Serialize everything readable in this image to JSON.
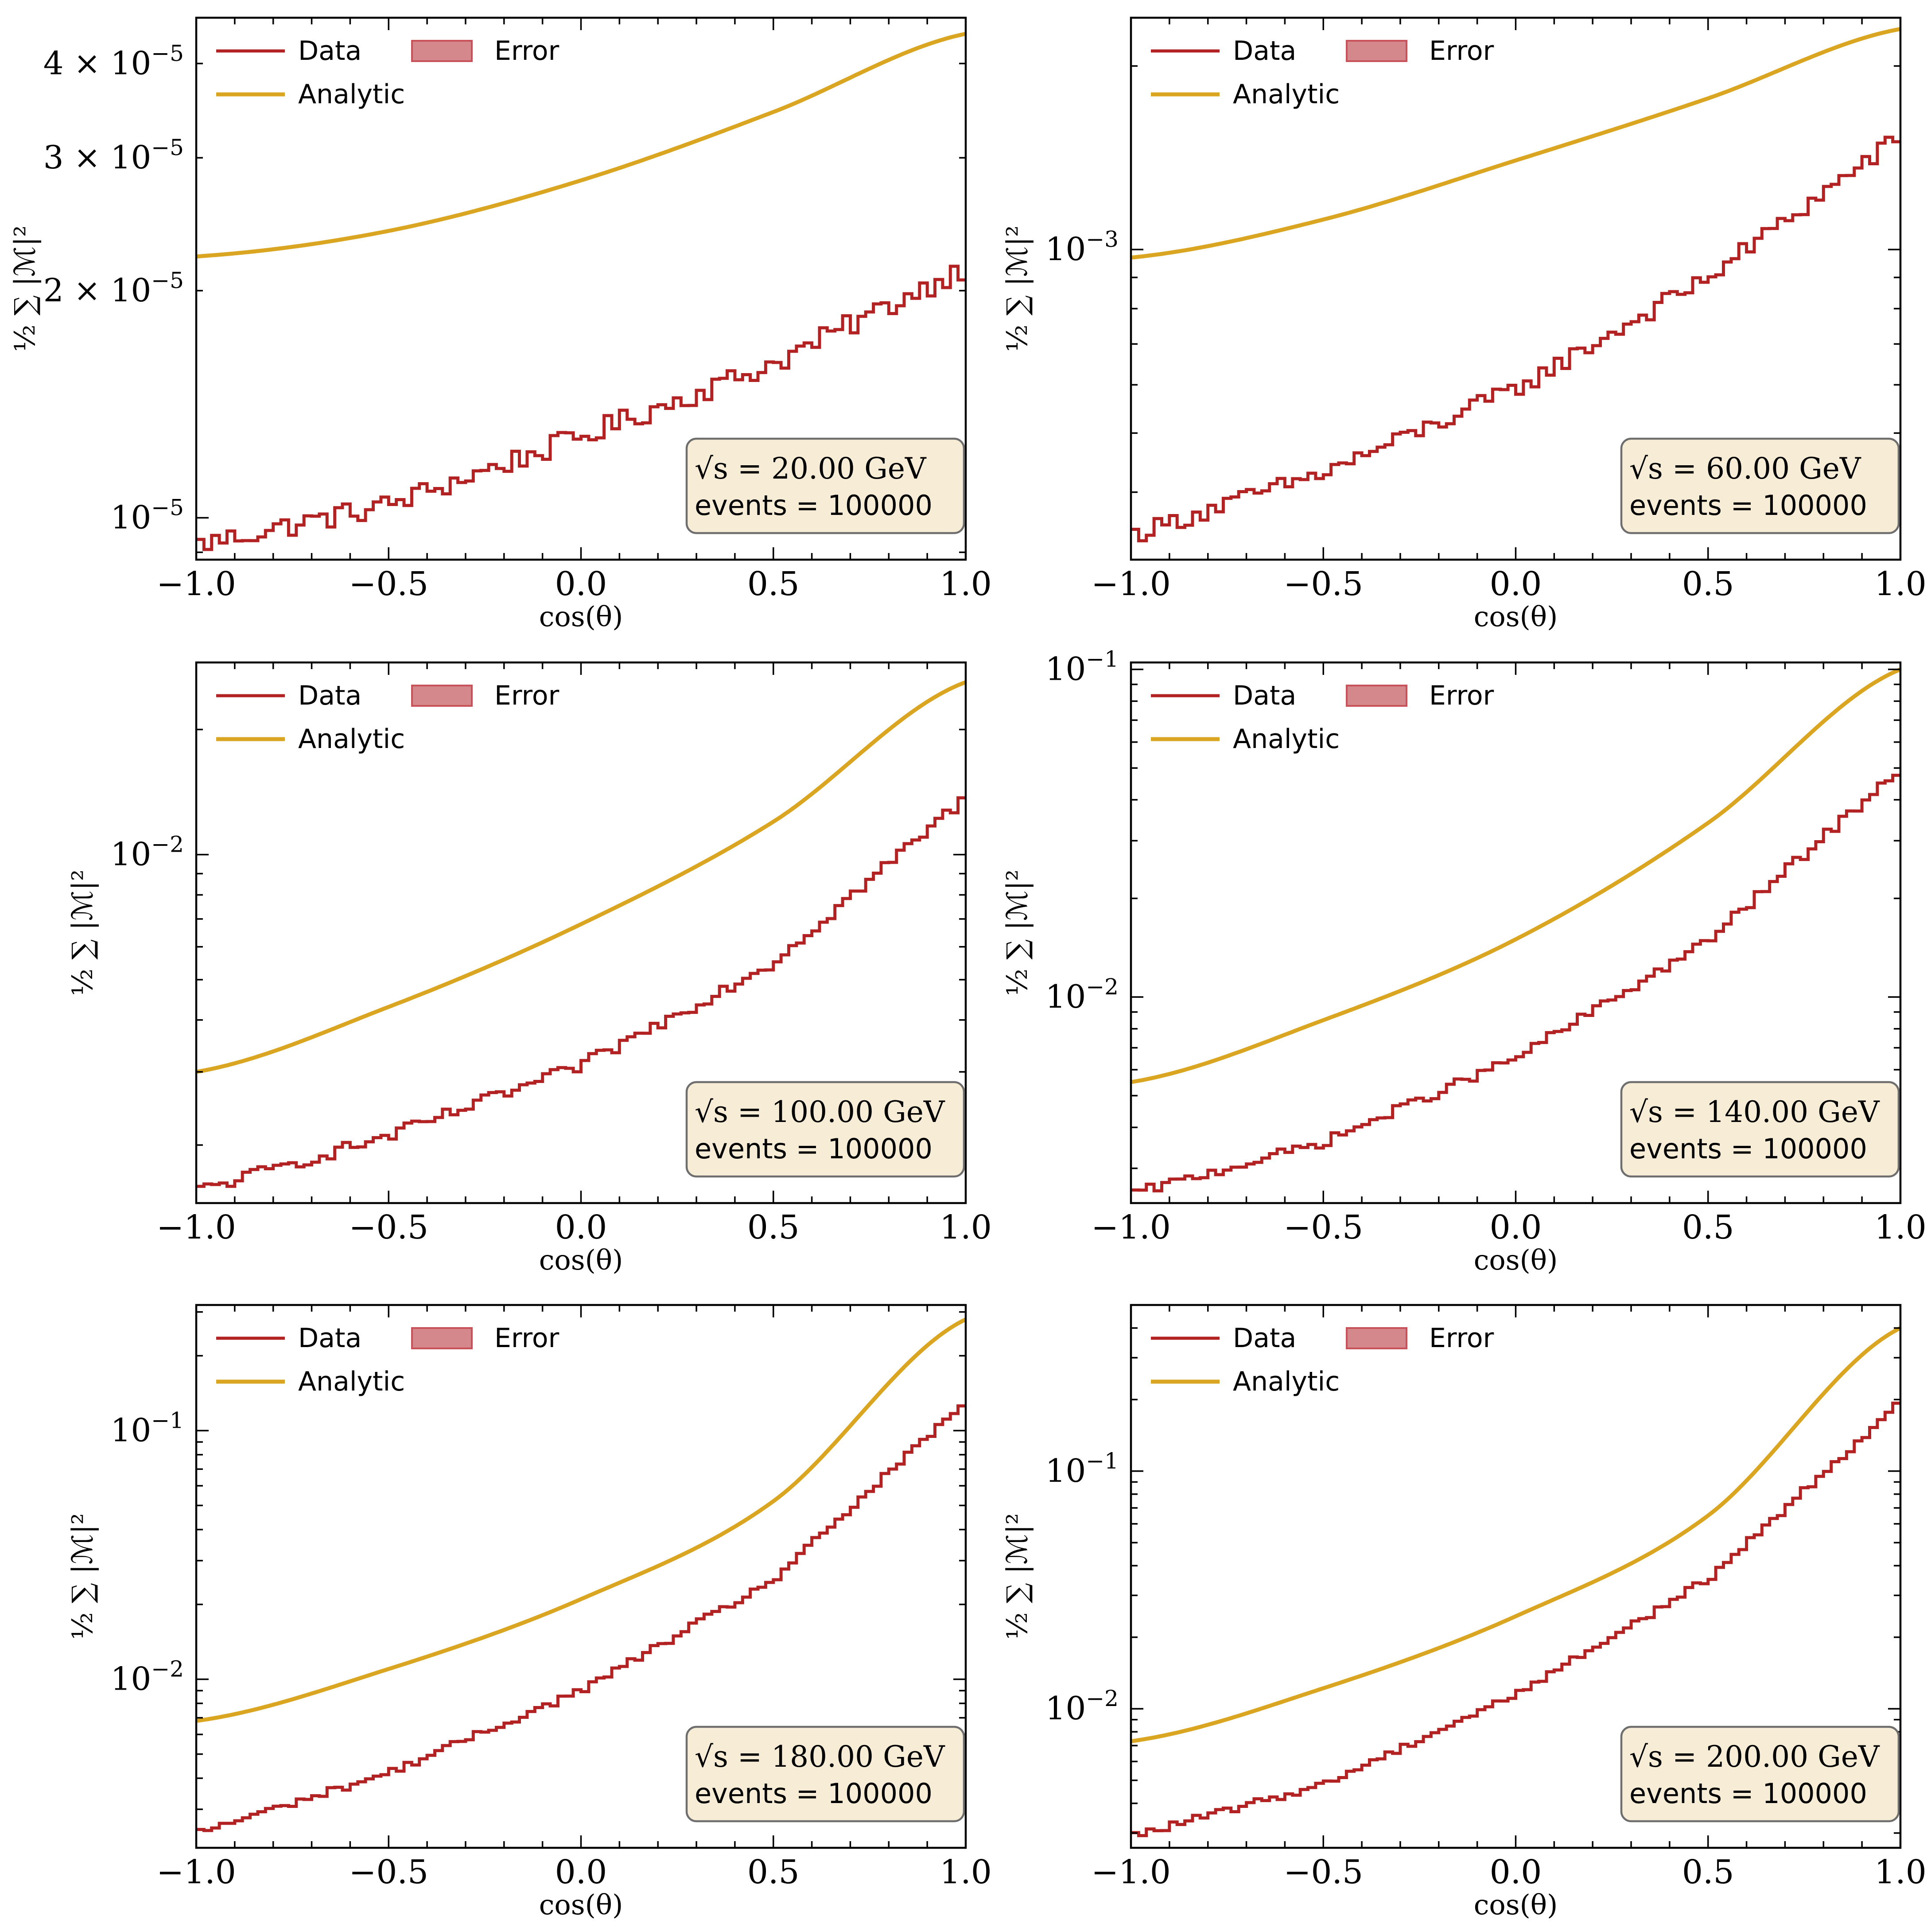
{
  "figure": {
    "legend": {
      "data": "Data",
      "error": "Error",
      "analytic": "Analytic"
    },
    "colors": {
      "data": "#b22222",
      "analytic": "#daa520",
      "error_fill": "#d4888c",
      "error_edge": "#c8525a",
      "infobox_bg": "#f7ecd6",
      "infobox_edge": "#6e6e6e"
    },
    "xlabel": "cos(θ)",
    "ylabel_tex": "½ ∑ |ℳ|²",
    "info_prefix": "√s = ",
    "info_suffix": " GeV",
    "events_label": "events = 100000"
  },
  "chart_data": [
    {
      "type": "line",
      "energy": "20.00",
      "scale": "log",
      "xlim": [
        -1.0,
        1.0
      ],
      "ylim": [
        8.8e-06,
        4.6e-05
      ],
      "xticks": [
        -1.0,
        -0.5,
        0.0,
        0.5,
        1.0
      ],
      "xtick_labels": [
        "−1.0",
        "−0.5",
        "0.0",
        "0.5",
        "1.0"
      ],
      "yticks": [
        {
          "v": 1e-05,
          "m": "10",
          "e": "−5"
        },
        {
          "v": 2e-05,
          "m": "2 × 10",
          "e": "−5"
        },
        {
          "v": 3e-05,
          "m": "3 × 10",
          "e": "−5"
        },
        {
          "v": 4e-05,
          "m": "4 × 10",
          "e": "−5"
        }
      ],
      "analytic": {
        "x": [
          -1.0,
          -0.5,
          0.0,
          0.5,
          1.0
        ],
        "y": [
          2.22e-05,
          2.4e-05,
          2.8e-05,
          3.45e-05,
          4.38e-05
        ]
      },
      "data": {
        "x": [
          -1.0,
          -0.5,
          0.0,
          0.5,
          1.0
        ],
        "y": [
          9.2e-06,
          1.04e-05,
          1.28e-05,
          1.6e-05,
          2.15e-05
        ]
      }
    },
    {
      "type": "line",
      "energy": "60.00",
      "scale": "log",
      "xlim": [
        -1.0,
        1.0
      ],
      "ylim": [
        0.00031,
        0.0024
      ],
      "xticks": [
        -1.0,
        -0.5,
        0.0,
        0.5,
        1.0
      ],
      "xtick_labels": [
        "−1.0",
        "−0.5",
        "0.0",
        "0.5",
        "1.0"
      ],
      "yticks": [
        {
          "v": 0.001,
          "m": "10",
          "e": "−3"
        }
      ],
      "analytic": {
        "x": [
          -1.0,
          -0.5,
          0.0,
          0.5,
          1.0
        ],
        "y": [
          0.00097,
          0.00112,
          0.0014,
          0.00177,
          0.0023
        ]
      },
      "data": {
        "x": [
          -1.0,
          -0.5,
          0.0,
          0.5,
          1.0
        ],
        "y": [
          0.00034,
          0.00043,
          0.00059,
          0.0009,
          0.00153
        ]
      }
    },
    {
      "type": "line",
      "energy": "100.00",
      "scale": "log",
      "xlim": [
        -1.0,
        1.0
      ],
      "ylim": [
        0.00145,
        0.029
      ],
      "xticks": [
        -1.0,
        -0.5,
        0.0,
        0.5,
        1.0
      ],
      "xtick_labels": [
        "−1.0",
        "−0.5",
        "0.0",
        "0.5",
        "1.0"
      ],
      "yticks": [
        {
          "v": 0.01,
          "m": "10",
          "e": "−2"
        }
      ],
      "analytic": {
        "x": [
          -1.0,
          -0.5,
          0.0,
          0.5,
          1.0
        ],
        "y": [
          0.003,
          0.0043,
          0.0068,
          0.012,
          0.026
        ]
      },
      "data": {
        "x": [
          -1.0,
          -0.5,
          0.0,
          0.5,
          1.0
        ],
        "y": [
          0.00155,
          0.0021,
          0.0031,
          0.0055,
          0.0137
        ]
      }
    },
    {
      "type": "line",
      "energy": "140.00",
      "scale": "log",
      "xlim": [
        -1.0,
        1.0
      ],
      "ylim": [
        0.00235,
        0.105
      ],
      "xticks": [
        -1.0,
        -0.5,
        0.0,
        0.5,
        1.0
      ],
      "xtick_labels": [
        "−1.0",
        "−0.5",
        "0.0",
        "0.5",
        "1.0"
      ],
      "yticks": [
        {
          "v": 0.01,
          "m": "10",
          "e": "−2"
        },
        {
          "v": 0.1,
          "m": "10",
          "e": "−1"
        }
      ],
      "analytic": {
        "x": [
          -1.0,
          -0.5,
          0.0,
          0.5,
          1.0
        ],
        "y": [
          0.0055,
          0.0085,
          0.015,
          0.034,
          0.1
        ]
      },
      "data": {
        "x": [
          -1.0,
          -0.5,
          0.0,
          0.5,
          1.0
        ],
        "y": [
          0.0025,
          0.0036,
          0.0065,
          0.0148,
          0.05
        ]
      }
    },
    {
      "type": "line",
      "energy": "180.00",
      "scale": "log",
      "xlim": [
        -1.0,
        1.0
      ],
      "ylim": [
        0.0021,
        0.32
      ],
      "xticks": [
        -1.0,
        -0.5,
        0.0,
        0.5,
        1.0
      ],
      "xtick_labels": [
        "−1.0",
        "−0.5",
        "0.0",
        "0.5",
        "1.0"
      ],
      "yticks": [
        {
          "v": 0.01,
          "m": "10",
          "e": "−2"
        },
        {
          "v": 0.1,
          "m": "10",
          "e": "−1"
        }
      ],
      "analytic": {
        "x": [
          -1.0,
          -0.5,
          0.0,
          0.5,
          1.0
        ],
        "y": [
          0.0068,
          0.011,
          0.021,
          0.052,
          0.28
        ]
      },
      "data": {
        "x": [
          -1.0,
          -0.5,
          0.0,
          0.5,
          1.0
        ],
        "y": [
          0.0024,
          0.0042,
          0.009,
          0.025,
          0.13
        ]
      }
    },
    {
      "type": "line",
      "energy": "200.00",
      "scale": "log",
      "xlim": [
        -1.0,
        1.0
      ],
      "ylim": [
        0.0026,
        0.5
      ],
      "xticks": [
        -1.0,
        -0.5,
        0.0,
        0.5,
        1.0
      ],
      "xtick_labels": [
        "−1.0",
        "−0.5",
        "0.0",
        "0.5",
        "1.0"
      ],
      "yticks": [
        {
          "v": 0.01,
          "m": "10",
          "e": "−2"
        },
        {
          "v": 0.1,
          "m": "10",
          "e": "−1"
        }
      ],
      "analytic": {
        "x": [
          -1.0,
          -0.5,
          0.0,
          0.5,
          1.0
        ],
        "y": [
          0.0073,
          0.0122,
          0.0245,
          0.065,
          0.4
        ]
      },
      "data": {
        "x": [
          -1.0,
          -0.5,
          0.0,
          0.5,
          1.0
        ],
        "y": [
          0.0029,
          0.0048,
          0.0115,
          0.035,
          0.195
        ]
      }
    }
  ]
}
